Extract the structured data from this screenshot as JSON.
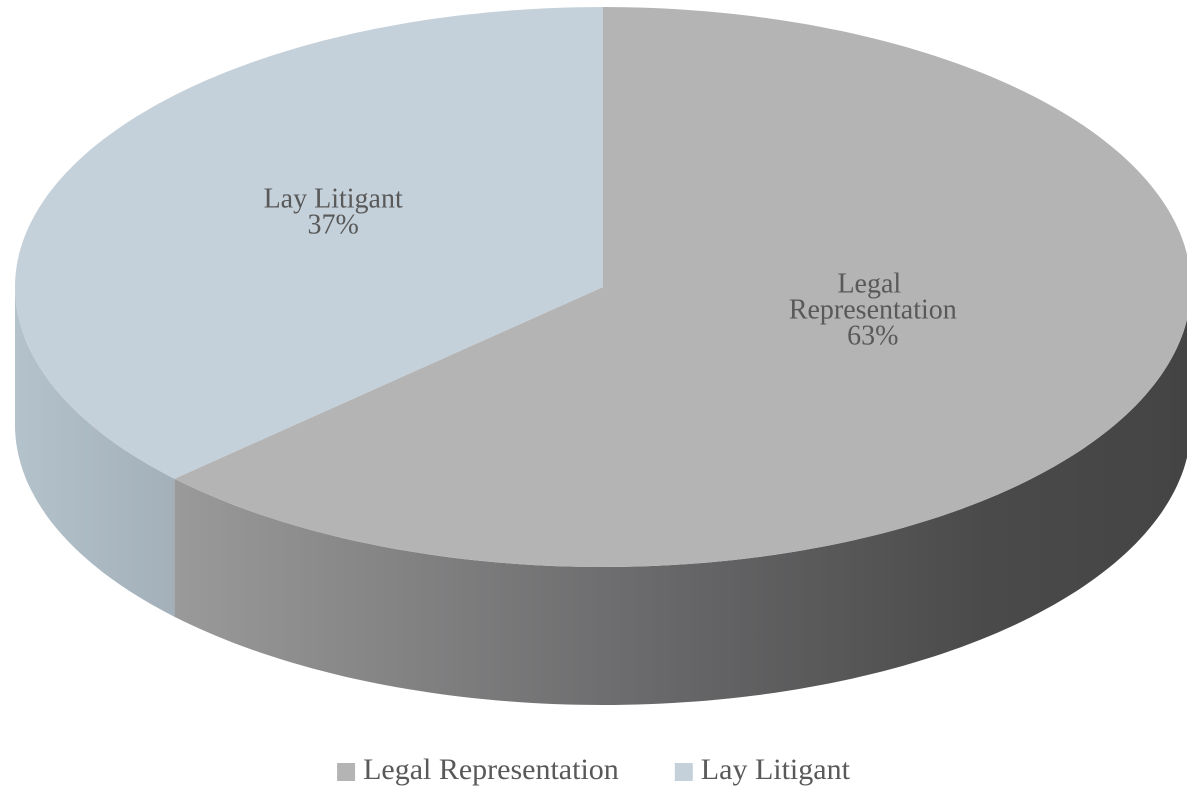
{
  "chart_data": {
    "type": "pie3d",
    "categories": [
      "Legal Representation",
      "Lay Litigant"
    ],
    "values": [
      63,
      37
    ],
    "value_labels": [
      "63%",
      "37%"
    ],
    "colors": [
      "#b4b4b4",
      "#c5d1da"
    ],
    "legend": "bottom"
  }
}
